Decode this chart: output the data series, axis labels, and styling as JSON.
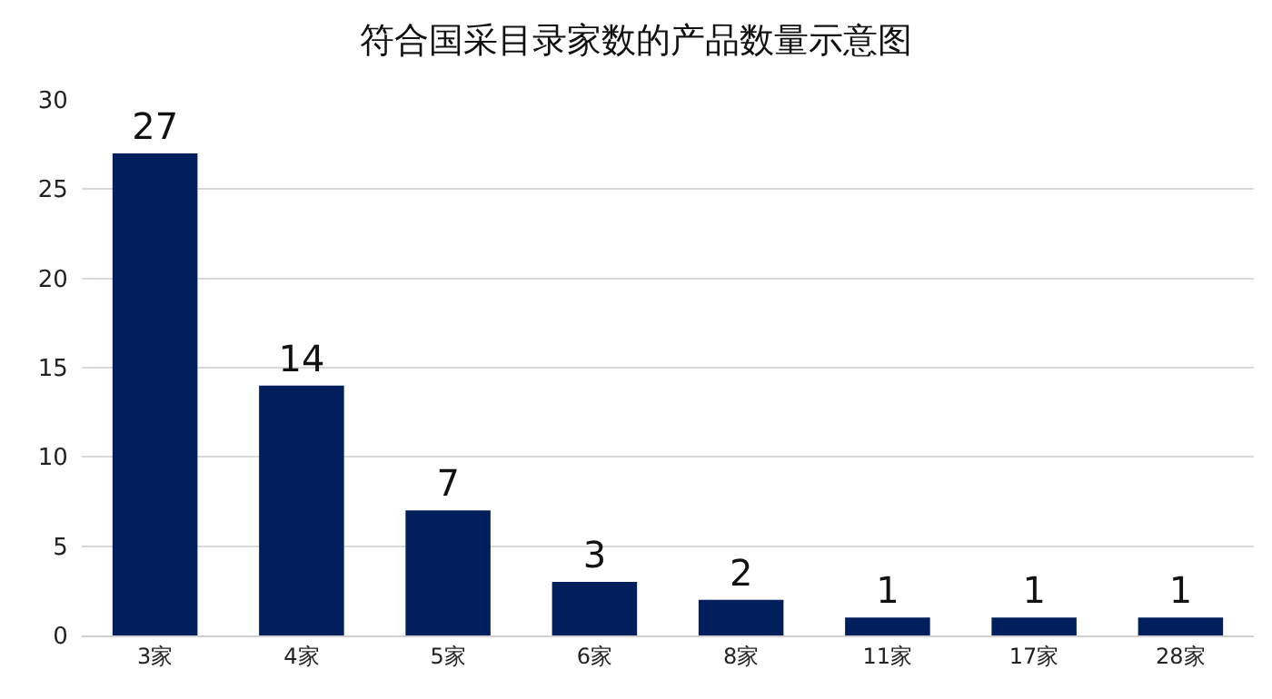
{
  "chart_data": {
    "type": "bar",
    "title": "符合国采目录家数的产品数量示意图",
    "categories": [
      "3家",
      "4家",
      "5家",
      "6家",
      "8家",
      "11家",
      "17家",
      "28家"
    ],
    "values": [
      27,
      14,
      7,
      3,
      2,
      1,
      1,
      1
    ],
    "color": "#001f5c",
    "ylim": [
      0,
      30
    ],
    "yticks": [
      0,
      5,
      10,
      15,
      20,
      25,
      30
    ],
    "grid": "y",
    "data_labels": true,
    "legend": false
  }
}
